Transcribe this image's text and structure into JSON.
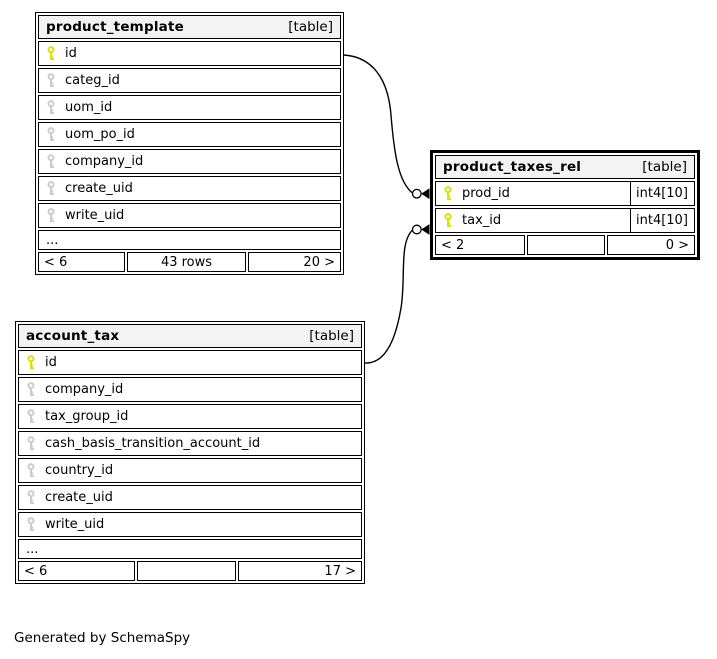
{
  "caption": "Generated by SchemaSpy",
  "colors": {
    "header_bg": "#f3f3f3",
    "border": "#000000",
    "primary_key": "#e0e000",
    "foreign_key": "#cccccc",
    "background": "#ffffff"
  },
  "tables": [
    {
      "id": "product_template",
      "name": "product_template",
      "badge": "[table]",
      "columns": [
        {
          "name": "id",
          "key": "pk",
          "type": ""
        },
        {
          "name": "categ_id",
          "key": "fk",
          "type": ""
        },
        {
          "name": "uom_id",
          "key": "fk",
          "type": ""
        },
        {
          "name": "uom_po_id",
          "key": "fk",
          "type": ""
        },
        {
          "name": "company_id",
          "key": "fk",
          "type": ""
        },
        {
          "name": "create_uid",
          "key": "fk",
          "type": ""
        },
        {
          "name": "write_uid",
          "key": "fk",
          "type": ""
        }
      ],
      "ellipsis": "...",
      "footer": {
        "left": "< 6",
        "center": "43 rows",
        "right": "20 >"
      }
    },
    {
      "id": "product_taxes_rel",
      "name": "product_taxes_rel",
      "badge": "[table]",
      "focus": true,
      "columns": [
        {
          "name": "prod_id",
          "key": "pk",
          "type": "int4[10]"
        },
        {
          "name": "tax_id",
          "key": "pk",
          "type": "int4[10]"
        }
      ],
      "ellipsis": null,
      "footer": {
        "left": "< 2",
        "center": "",
        "right": "0 >"
      }
    },
    {
      "id": "account_tax",
      "name": "account_tax",
      "badge": "[table]",
      "columns": [
        {
          "name": "id",
          "key": "pk",
          "type": ""
        },
        {
          "name": "company_id",
          "key": "fk",
          "type": ""
        },
        {
          "name": "tax_group_id",
          "key": "fk",
          "type": ""
        },
        {
          "name": "cash_basis_transition_account_id",
          "key": "fk",
          "type": ""
        },
        {
          "name": "country_id",
          "key": "fk",
          "type": ""
        },
        {
          "name": "create_uid",
          "key": "fk",
          "type": ""
        },
        {
          "name": "write_uid",
          "key": "fk",
          "type": ""
        }
      ],
      "ellipsis": "...",
      "footer": {
        "left": "< 6",
        "center": "",
        "right": "17 >"
      }
    }
  ],
  "relationships": [
    {
      "from": "product_template.id",
      "to": "product_taxes_rel.prod_id"
    },
    {
      "from": "account_tax.id",
      "to": "product_taxes_rel.tax_id"
    }
  ]
}
